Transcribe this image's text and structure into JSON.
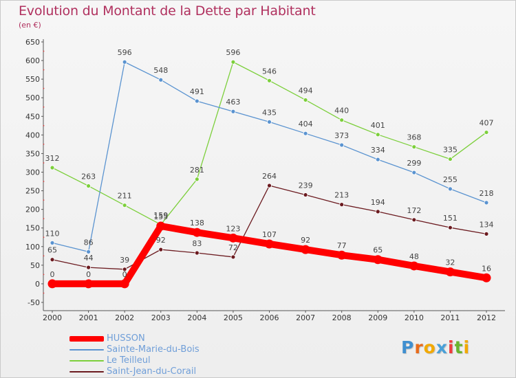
{
  "title": "Evolution du Montant de la Dette par Habitant",
  "unit_label": "(en €)",
  "logo": {
    "text": "Proxiti",
    "letter_colors": [
      "#3f8fd0",
      "#e86b1b",
      "#f2a900",
      "#4aa0d8",
      "#ef3d3d",
      "#6ab42d",
      "#f2a900"
    ]
  },
  "chart_data": {
    "type": "line",
    "x": [
      "2000",
      "2001",
      "2002",
      "2003",
      "2004",
      "2005",
      "2006",
      "2007",
      "2008",
      "2009",
      "2010",
      "2011",
      "2012"
    ],
    "ylim": [
      -50,
      650
    ],
    "yticks": [
      "650",
      "600",
      "550",
      "500",
      "450",
      "400",
      "350",
      "300",
      "250",
      "200",
      "150",
      "100",
      "50",
      "0",
      "-50"
    ],
    "grid": false,
    "legend_position": "bottom-left",
    "series": [
      {
        "name": "Saint-Jean-du-Corail",
        "color": "#6b1a1f",
        "values": [
          65,
          44,
          39,
          92,
          83,
          72,
          264,
          239,
          213,
          194,
          172,
          151,
          134
        ],
        "labels": [
          "65",
          "44",
          "39",
          "92",
          "83",
          "72",
          "264",
          "239",
          "213",
          "194",
          "172",
          "151",
          "134"
        ]
      },
      {
        "name": "Le Teilleul",
        "color": "#7ccf3b",
        "values": [
          312,
          263,
          211,
          159,
          281,
          596,
          546,
          494,
          440,
          401,
          368,
          335,
          407
        ],
        "labels": [
          "312",
          "263",
          "211",
          "159",
          "281",
          "596",
          "546",
          "494",
          "440",
          "401",
          "368",
          "335",
          "407"
        ]
      },
      {
        "name": "Sainte-Marie-du-Bois",
        "color": "#5a93d0",
        "values": [
          110,
          86,
          596,
          548,
          491,
          463,
          435,
          404,
          373,
          334,
          299,
          255,
          218
        ],
        "labels": [
          "110",
          "86",
          "596",
          "548",
          "491",
          "463",
          "435",
          "404",
          "373",
          "334",
          "299",
          "255",
          "218"
        ]
      },
      {
        "name": "HUSSON",
        "color": "#ff0000",
        "values": [
          0,
          0,
          0,
          155,
          138,
          123,
          107,
          92,
          77,
          65,
          48,
          32,
          16
        ],
        "labels": [
          "0",
          "0",
          "0",
          "155",
          "138",
          "123",
          "107",
          "92",
          "77",
          "65",
          "48",
          "32",
          "16"
        ]
      }
    ]
  },
  "legend": [
    {
      "label": "HUSSON",
      "color": "#ff0000"
    },
    {
      "label": "Sainte-Marie-du-Bois",
      "color": "#5a93d0"
    },
    {
      "label": "Le Teilleul",
      "color": "#7ccf3b"
    },
    {
      "label": "Saint-Jean-du-Corail",
      "color": "#6b1a1f"
    }
  ]
}
